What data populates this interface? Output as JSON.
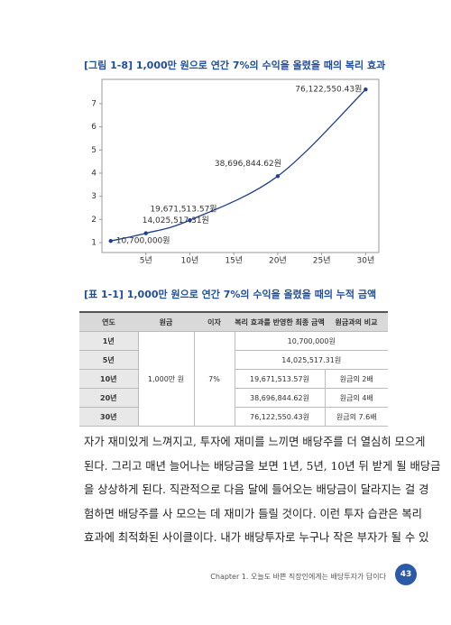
{
  "chart_data": {
    "type": "line",
    "title": "[그림 1-8] 1,000만 원으로 연간 7%의 수익을 올렸을 때의 복리 효과",
    "x": [
      1,
      5,
      10,
      20,
      30
    ],
    "series": [
      {
        "color": "#1f3f8f",
        "values": [
          1.07,
          1.4025517,
          1.9671514,
          3.8696845,
          7.612255
        ],
        "value_labels": [
          "10,700,000원",
          "14,025,517.31원",
          "19,671,513.57원",
          "38,696,844.62원",
          "76,122,550.43원"
        ]
      }
    ],
    "xlim": [
      0,
      31.5
    ],
    "ylim": [
      0.57,
      8.05
    ],
    "xticks": [
      {
        "value": 5,
        "label": "5년"
      },
      {
        "value": 10,
        "label": "10년"
      },
      {
        "value": 15,
        "label": "15년"
      },
      {
        "value": 20,
        "label": "20년"
      },
      {
        "value": 25,
        "label": "25년"
      },
      {
        "value": 30,
        "label": "30년"
      }
    ],
    "yticks": [
      1,
      2,
      3,
      4,
      5,
      6,
      7
    ]
  },
  "table": {
    "title": "[표 1-1] 1,000만 원으로 연간 7%의 수익을 올렸을 때의 누적 금액",
    "header": [
      "연도",
      "원금",
      "이자",
      "복리 효과를 반영한 최종 금액",
      "원금과의 비교"
    ],
    "principal": "1,000만 원",
    "interest": "7%",
    "rows": [
      {
        "year": "1년",
        "amount": "10,700,000원"
      },
      {
        "year": "5년",
        "amount": "14,025,517.31원"
      },
      {
        "year": "10년",
        "amount": "19,671,513.57원",
        "comparison": "원금의 2배"
      },
      {
        "year": "20년",
        "amount": "38,696,844.62원",
        "comparison": "원금의 4배"
      },
      {
        "year": "30년",
        "amount": "76,122,550.43원",
        "comparison": "원금의 7.6배"
      }
    ]
  },
  "body": [
    "자가 재미있게 느껴지고, 투자에 재미를 느끼면 배당주를 더 열심히 모으게",
    "된다. 그리고 매년 늘어나는 배당금을 보면 1년, 5년, 10년 뒤 받게 될 배당금",
    "을 상상하게 된다. 직관적으로 다음 달에 들어오는 배당금이 달라지는 걸 경",
    "험하면 배당주를 사 모으는 데 재미가 들릴 것이다. 이런 투자 습관은 복리",
    "효과에 최적화된 사이클이다. 내가 배당투자로 누구나 작은 부자가 될 수 있"
  ],
  "footer": {
    "chapter": "Chapter 1. 오늘도 바쁜 직장인에게는 배당투자가 답이다",
    "page": "43"
  }
}
